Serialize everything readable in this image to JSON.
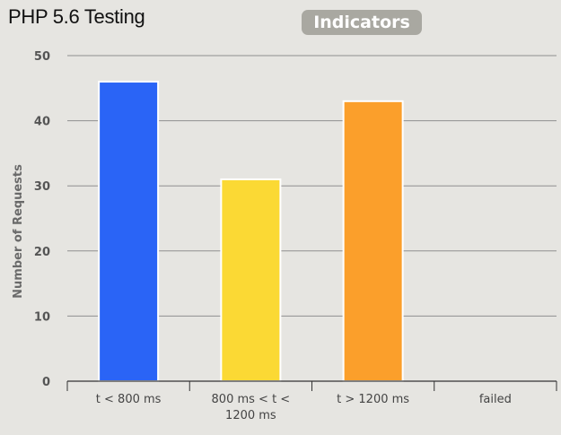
{
  "header": {
    "title": "PHP 5.6 Testing",
    "badge_label": "Indicators"
  },
  "chart_data": {
    "type": "bar",
    "title": "",
    "xlabel": "",
    "ylabel": "Number of Requests",
    "categories": [
      [
        "t < 800 ms"
      ],
      [
        "800 ms < t <",
        "1200 ms"
      ],
      [
        "t > 1200 ms"
      ],
      [
        "failed"
      ]
    ],
    "values": [
      46,
      31,
      43,
      0
    ],
    "colors": [
      "#2a64f6",
      "#fbd934",
      "#fb9f2b",
      "#cccccc"
    ],
    "ylim": [
      0,
      50
    ],
    "yticks": [
      0,
      10,
      20,
      30,
      40,
      50
    ],
    "grid": true,
    "legend": "none"
  }
}
